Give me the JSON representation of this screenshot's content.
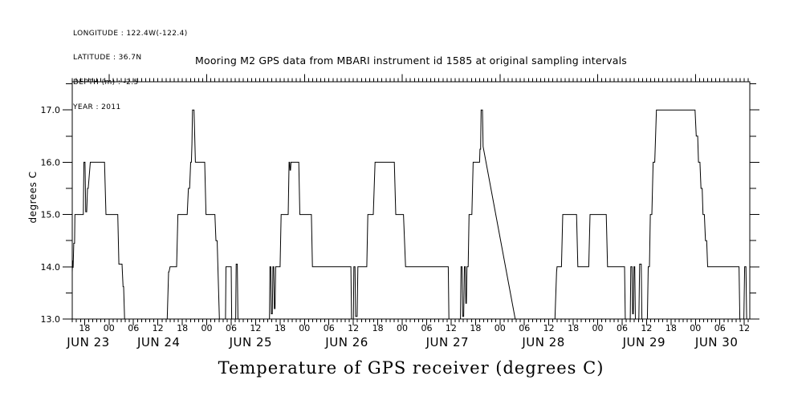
{
  "header": {
    "longitude": "LONGITUDE : 122.4W(-122.4)",
    "latitude": "LATITUDE : 36.7N",
    "depth": "DEPTH (m) : -2.5",
    "year": "YEAR : 2011"
  },
  "title": "Mooring M2 GPS data from MBARI instrument id 1585 at original sampling intervals",
  "footer_title": "Temperature of GPS receiver (degrees C)",
  "colors": {
    "line": "#000000",
    "frame": "#000000",
    "background": "#ffffff"
  },
  "chart_data": {
    "type": "line",
    "title": "Mooring M2 GPS data from MBARI instrument id 1585 at original sampling intervals",
    "caption": "Temperature of GPS receiver (degrees C)",
    "ylabel": "degrees C",
    "x_unit": "hours since 2011-06-23 00:00",
    "xlim": [
      14.97,
      181.35
    ],
    "ylim": [
      13.0,
      17.54
    ],
    "grid": false,
    "y_ticks": [
      13.0,
      14.0,
      15.0,
      16.0,
      17.0
    ],
    "y_tick_labels": [
      "13.0",
      "14.0",
      "15.0",
      "16.0",
      "17.0"
    ],
    "y_minor_step": 0.5,
    "x_hour_ticks": [
      {
        "t": 18,
        "label": "18"
      },
      {
        "t": 24,
        "label": "00"
      },
      {
        "t": 30,
        "label": "06"
      },
      {
        "t": 36,
        "label": "12"
      },
      {
        "t": 42,
        "label": "18"
      },
      {
        "t": 48,
        "label": "00"
      },
      {
        "t": 54,
        "label": "06"
      },
      {
        "t": 60,
        "label": "12"
      },
      {
        "t": 66,
        "label": "18"
      },
      {
        "t": 72,
        "label": "00"
      },
      {
        "t": 78,
        "label": "06"
      },
      {
        "t": 84,
        "label": "12"
      },
      {
        "t": 90,
        "label": "18"
      },
      {
        "t": 96,
        "label": "00"
      },
      {
        "t": 102,
        "label": "06"
      },
      {
        "t": 108,
        "label": "12"
      },
      {
        "t": 114,
        "label": "18"
      },
      {
        "t": 120,
        "label": "00"
      },
      {
        "t": 126,
        "label": "06"
      },
      {
        "t": 132,
        "label": "12"
      },
      {
        "t": 138,
        "label": "18"
      },
      {
        "t": 144,
        "label": "00"
      },
      {
        "t": 150,
        "label": "06"
      },
      {
        "t": 156,
        "label": "12"
      },
      {
        "t": 162,
        "label": "18"
      },
      {
        "t": 168,
        "label": "00"
      },
      {
        "t": 174,
        "label": "06"
      },
      {
        "t": 180,
        "label": "12"
      }
    ],
    "x_date_labels": [
      {
        "t": 18.9,
        "text": "JUN 23"
      },
      {
        "t": 36.2,
        "text": "JUN 24"
      },
      {
        "t": 58.8,
        "text": "JUN 25"
      },
      {
        "t": 82.4,
        "text": "JUN 26"
      },
      {
        "t": 107.1,
        "text": "JUN 27"
      },
      {
        "t": 130.7,
        "text": "JUN 28"
      },
      {
        "t": 155.4,
        "text": "JUN 29"
      },
      {
        "t": 173.2,
        "text": "JUN 30"
      }
    ],
    "series": [
      {
        "name": "Temperature of GPS receiver (degrees C)",
        "points": [
          [
            14.97,
            13.9
          ],
          [
            15.05,
            14.12
          ],
          [
            15.18,
            13.98
          ],
          [
            15.35,
            14.45
          ],
          [
            15.55,
            14.45
          ],
          [
            15.62,
            15.0
          ],
          [
            17.7,
            15.0
          ],
          [
            17.82,
            16.0
          ],
          [
            18.1,
            16.0
          ],
          [
            18.28,
            15.05
          ],
          [
            18.52,
            15.05
          ],
          [
            18.72,
            15.5
          ],
          [
            18.9,
            15.5
          ],
          [
            19.4,
            16.0
          ],
          [
            22.9,
            16.0
          ],
          [
            23.25,
            15.0
          ],
          [
            26.15,
            15.0
          ],
          [
            26.42,
            14.05
          ],
          [
            27.2,
            14.05
          ],
          [
            27.45,
            13.62
          ],
          [
            27.58,
            13.62
          ],
          [
            27.82,
            13.0
          ],
          [
            38.3,
            13.0
          ],
          [
            38.62,
            13.9
          ],
          [
            38.72,
            13.9
          ],
          [
            39.0,
            14.0
          ],
          [
            40.6,
            14.0
          ],
          [
            40.92,
            15.0
          ],
          [
            43.2,
            15.0
          ],
          [
            43.5,
            15.5
          ],
          [
            43.8,
            15.5
          ],
          [
            44.05,
            16.0
          ],
          [
            44.22,
            16.0
          ],
          [
            44.36,
            16.35
          ],
          [
            44.5,
            17.0
          ],
          [
            44.88,
            17.0
          ],
          [
            45.02,
            16.6
          ],
          [
            45.22,
            16.0
          ],
          [
            47.5,
            16.0
          ],
          [
            47.82,
            15.0
          ],
          [
            50.0,
            15.0
          ],
          [
            50.26,
            14.5
          ],
          [
            50.56,
            14.5
          ],
          [
            51.1,
            13.0
          ],
          [
            52.6,
            13.0
          ],
          [
            52.72,
            14.0
          ],
          [
            54.0,
            14.0
          ],
          [
            54.12,
            13.0
          ],
          [
            55.1,
            13.0
          ],
          [
            55.22,
            14.05
          ],
          [
            55.5,
            14.05
          ],
          [
            55.65,
            13.0
          ],
          [
            63.4,
            13.0
          ],
          [
            63.52,
            14.0
          ],
          [
            63.72,
            14.0
          ],
          [
            63.86,
            13.1
          ],
          [
            64.1,
            13.1
          ],
          [
            64.26,
            14.0
          ],
          [
            64.46,
            14.0
          ],
          [
            64.6,
            13.2
          ],
          [
            64.76,
            13.2
          ],
          [
            64.92,
            14.0
          ],
          [
            66.0,
            14.0
          ],
          [
            66.26,
            15.0
          ],
          [
            68.0,
            15.0
          ],
          [
            68.22,
            16.0
          ],
          [
            68.36,
            16.0
          ],
          [
            68.46,
            15.85
          ],
          [
            68.58,
            15.85
          ],
          [
            68.68,
            16.0
          ],
          [
            70.6,
            16.0
          ],
          [
            70.86,
            15.0
          ],
          [
            73.7,
            15.0
          ],
          [
            73.96,
            14.0
          ],
          [
            83.4,
            14.0
          ],
          [
            83.56,
            13.0
          ],
          [
            84.0,
            13.0
          ],
          [
            84.12,
            14.0
          ],
          [
            84.4,
            14.0
          ],
          [
            84.56,
            13.05
          ],
          [
            84.94,
            13.05
          ],
          [
            85.1,
            14.0
          ],
          [
            87.3,
            14.0
          ],
          [
            87.56,
            15.0
          ],
          [
            88.9,
            15.0
          ],
          [
            89.32,
            16.0
          ],
          [
            94.05,
            16.0
          ],
          [
            94.42,
            15.0
          ],
          [
            96.3,
            15.0
          ],
          [
            96.82,
            14.0
          ],
          [
            107.3,
            14.0
          ],
          [
            107.46,
            13.0
          ],
          [
            110.3,
            13.0
          ],
          [
            110.44,
            14.0
          ],
          [
            110.7,
            14.0
          ],
          [
            110.86,
            13.05
          ],
          [
            111.1,
            13.05
          ],
          [
            111.26,
            14.0
          ],
          [
            111.5,
            14.0
          ],
          [
            111.62,
            13.3
          ],
          [
            111.76,
            13.3
          ],
          [
            111.9,
            14.0
          ],
          [
            112.2,
            14.0
          ],
          [
            112.42,
            15.0
          ],
          [
            113.1,
            15.0
          ],
          [
            113.42,
            16.0
          ],
          [
            115.0,
            16.0
          ],
          [
            115.1,
            16.25
          ],
          [
            115.26,
            16.25
          ],
          [
            115.36,
            17.0
          ],
          [
            115.7,
            17.0
          ],
          [
            115.86,
            16.3
          ],
          [
            123.75,
            13.0
          ],
          [
            133.5,
            13.0
          ],
          [
            133.9,
            13.9
          ],
          [
            134.02,
            14.0
          ],
          [
            135.1,
            14.0
          ],
          [
            135.42,
            15.0
          ],
          [
            138.8,
            15.0
          ],
          [
            139.12,
            14.0
          ],
          [
            141.8,
            14.0
          ],
          [
            142.12,
            15.0
          ],
          [
            146.1,
            15.0
          ],
          [
            146.42,
            14.0
          ],
          [
            150.6,
            14.0
          ],
          [
            150.78,
            13.0
          ],
          [
            152.0,
            13.0
          ],
          [
            152.14,
            14.0
          ],
          [
            152.44,
            14.0
          ],
          [
            152.58,
            13.1
          ],
          [
            152.74,
            13.1
          ],
          [
            152.9,
            14.0
          ],
          [
            153.1,
            14.0
          ],
          [
            153.26,
            13.0
          ],
          [
            154.1,
            13.0
          ],
          [
            154.3,
            14.05
          ],
          [
            154.7,
            14.05
          ],
          [
            154.86,
            13.0
          ],
          [
            156.2,
            13.0
          ],
          [
            156.42,
            14.0
          ],
          [
            156.7,
            14.0
          ],
          [
            156.92,
            15.0
          ],
          [
            157.3,
            15.0
          ],
          [
            157.62,
            16.0
          ],
          [
            158.0,
            16.0
          ],
          [
            158.42,
            17.0
          ],
          [
            167.9,
            17.0
          ],
          [
            168.2,
            16.5
          ],
          [
            168.56,
            16.5
          ],
          [
            168.76,
            16.0
          ],
          [
            169.1,
            16.0
          ],
          [
            169.36,
            15.5
          ],
          [
            169.66,
            15.5
          ],
          [
            169.86,
            15.0
          ],
          [
            170.2,
            15.0
          ],
          [
            170.46,
            14.5
          ],
          [
            170.76,
            14.5
          ],
          [
            171.0,
            14.0
          ],
          [
            178.7,
            14.0
          ],
          [
            178.9,
            13.0
          ],
          [
            179.9,
            13.0
          ],
          [
            180.08,
            14.0
          ],
          [
            180.4,
            14.0
          ],
          [
            180.58,
            13.0
          ],
          [
            181.35,
            13.0
          ]
        ]
      }
    ]
  }
}
